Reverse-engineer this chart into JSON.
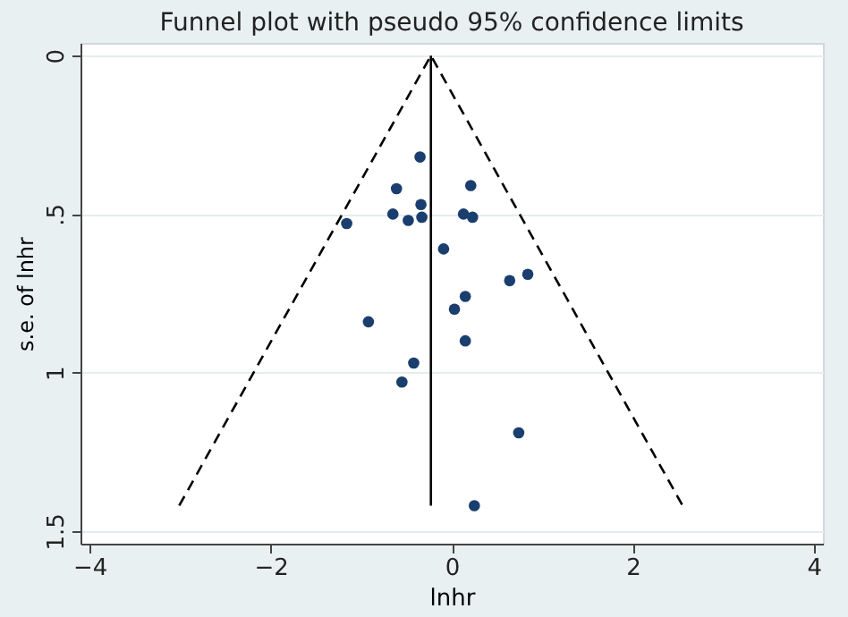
{
  "chart_data": {
    "type": "scatter",
    "title": "Funnel plot with pseudo 95% confidence limits",
    "xlabel": "lnhr",
    "ylabel": "s.e. of lnhr",
    "xlim": [
      -4.1,
      4.1
    ],
    "xticks": [
      -4,
      -2,
      0,
      2,
      4
    ],
    "ylim": [
      1.54,
      -0.04
    ],
    "yticks": [
      0,
      {
        "value": 0.5,
        "label": ".5"
      },
      1,
      1.5
    ],
    "grid": "y",
    "series": [
      {
        "type": "line",
        "color": "#000000",
        "line_style": "dashed",
        "marker": "none",
        "x": [
          -3.01,
          -0.23,
          2.55
        ],
        "values": [
          1.42,
          0,
          1.42
        ]
      },
      {
        "type": "line",
        "color": "#000000",
        "line_style": "solid",
        "marker": "none",
        "x": [
          -0.23,
          -0.23
        ],
        "values": [
          0,
          1.42
        ]
      },
      {
        "color": "#1a3e6e",
        "marker": "circle",
        "x": [
          -0.35,
          0.21,
          -0.61,
          -0.34,
          -0.65,
          -0.48,
          -0.33,
          0.13,
          0.23,
          -1.16,
          -0.09,
          0.64,
          0.84,
          0.15,
          0.03,
          -0.92,
          0.15,
          -0.42,
          -0.55,
          0.74,
          0.25
        ],
        "values": [
          0.32,
          0.41,
          0.42,
          0.47,
          0.5,
          0.52,
          0.51,
          0.5,
          0.51,
          0.53,
          0.61,
          0.71,
          0.69,
          0.76,
          0.8,
          0.84,
          0.9,
          0.97,
          1.03,
          1.19,
          1.42
        ]
      }
    ]
  }
}
